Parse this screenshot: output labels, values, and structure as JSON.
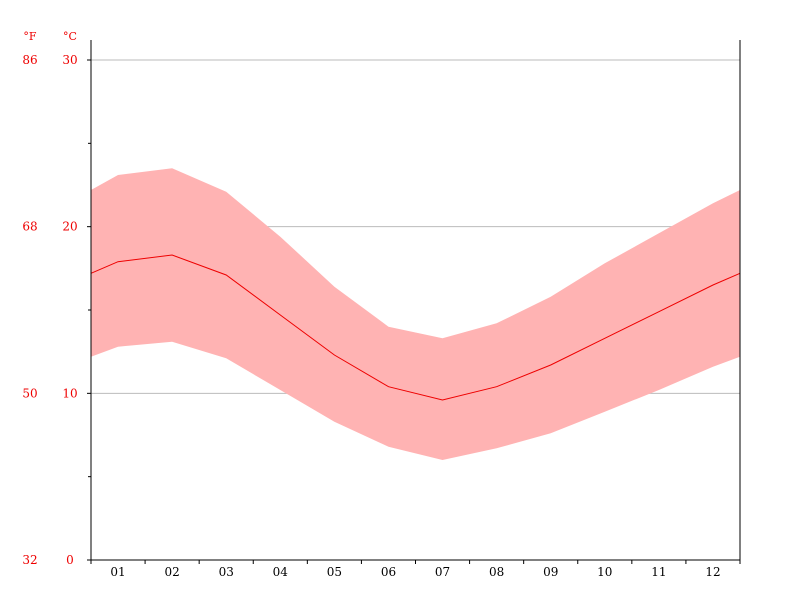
{
  "chart_data": {
    "type": "area",
    "x": [
      "01",
      "02",
      "03",
      "04",
      "05",
      "06",
      "07",
      "08",
      "09",
      "10",
      "11",
      "12"
    ],
    "series": [
      {
        "role": "high",
        "values": [
          23.1,
          23.5,
          22.1,
          19.4,
          16.4,
          14.0,
          13.3,
          14.2,
          15.8,
          17.8,
          19.6,
          21.4
        ]
      },
      {
        "role": "mean",
        "values": [
          17.9,
          18.3,
          17.1,
          14.7,
          12.3,
          10.4,
          9.6,
          10.4,
          11.7,
          13.3,
          14.9,
          16.5
        ]
      },
      {
        "role": "low",
        "values": [
          12.8,
          13.1,
          12.1,
          10.2,
          8.3,
          6.8,
          6.0,
          6.7,
          7.6,
          8.9,
          10.2,
          11.6
        ]
      }
    ],
    "edge_values": {
      "high": [
        22.2,
        22.2
      ],
      "mean": [
        17.2,
        17.2
      ],
      "low": [
        12.2,
        12.2
      ]
    },
    "y_celsius": {
      "unit": "°C",
      "ticks": [
        "30",
        "20",
        "10",
        "0"
      ],
      "values": [
        30,
        20,
        10,
        0
      ]
    },
    "y_fahrenheit": {
      "unit": "°F",
      "ticks": [
        "86",
        "68",
        "50",
        "32"
      ],
      "values": [
        30,
        20,
        10,
        0
      ]
    },
    "ylim": [
      0,
      30
    ],
    "minor_ticks": [
      5,
      15,
      25
    ],
    "grid": true,
    "colors": {
      "band": "#ffb3b3",
      "line": "#ee0000",
      "text": "#ee0000",
      "axis": "#000000",
      "grid": "#bbbbbb",
      "xtext": "#000000"
    }
  }
}
